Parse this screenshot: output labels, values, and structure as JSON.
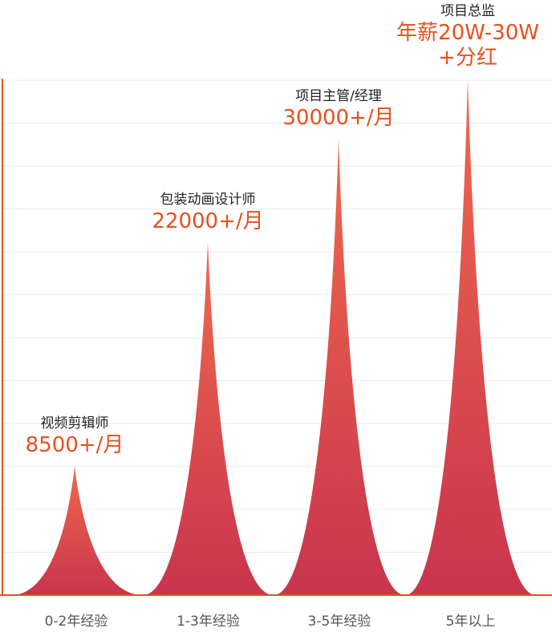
{
  "chart_data": {
    "type": "area",
    "title": "",
    "xlabel": "",
    "ylabel": "",
    "grid": true,
    "ylim": [
      0,
      30
    ],
    "categories": [
      "0-2年经验",
      "1-3年经验",
      "3-5年经验",
      "5年以上"
    ],
    "values": [
      7.5,
      20.5,
      26.5,
      30
    ],
    "annotations": [
      {
        "role": "视频剪辑师",
        "salary": [
          "8500+/月"
        ]
      },
      {
        "role": "包装动画设计师",
        "salary": [
          "22000+/月"
        ]
      },
      {
        "role": "项目主管/经理",
        "salary": [
          "30000+/月"
        ]
      },
      {
        "role": "项目总监",
        "salary": [
          "年薪20W-30W",
          "+分红"
        ]
      }
    ],
    "colors": {
      "peak_top": "#ef6a4d",
      "peak_bottom": "#c9344e",
      "axis": "#e8501e",
      "grid": "#ebebeb",
      "salary_text": "#e8501e",
      "role_text": "#222222",
      "tick_text": "#555555"
    }
  }
}
